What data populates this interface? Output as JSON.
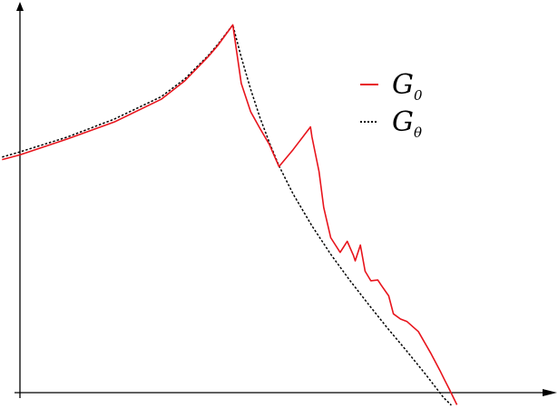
{
  "chart_data": {
    "type": "line",
    "title": "",
    "xlabel": "",
    "ylabel": "",
    "xlim": [
      0,
      100
    ],
    "ylim": [
      0,
      100
    ],
    "grid": false,
    "legend_position": "top-right",
    "series": [
      {
        "name": "G0",
        "label_main": "G",
        "label_sub": "0",
        "color": "#e8141c",
        "style": "solid",
        "x": [
          -3.8,
          0,
          10,
          20,
          30,
          35,
          40,
          42,
          45.2,
          47,
          49,
          51,
          53,
          55,
          58,
          61.7,
          62,
          63.5,
          64.5,
          66,
          68,
          69.5,
          70.8,
          71.2,
          72.3,
          73.3,
          74.5,
          76,
          76.7,
          78.3,
          79.3,
          80.8,
          82.2,
          84.6,
          87.2,
          89.2,
          90.2,
          91.2,
          92.8
        ],
        "y": [
          63.3,
          64.6,
          68.9,
          73.5,
          79.7,
          84.7,
          91.3,
          94.3,
          99.9,
          84.0,
          76.3,
          71.7,
          67.3,
          61.4,
          66.0,
          72.2,
          69.5,
          60.1,
          50.3,
          42.1,
          38.1,
          41.1,
          37.3,
          35.8,
          40.1,
          33.0,
          30.4,
          30.6,
          29.2,
          26.3,
          21.4,
          20.0,
          19.3,
          16.6,
          10.8,
          6.0,
          3.4,
          0.9,
          -3.3
        ]
      },
      {
        "name": "Gθ",
        "label_main": "G",
        "label_sub": "θ",
        "color": "#000000",
        "style": "dotted",
        "x": [
          -3.8,
          0,
          10,
          20,
          30,
          35,
          40,
          42,
          45.2,
          47,
          49,
          51,
          53,
          55,
          58,
          62,
          66,
          70,
          74,
          78,
          82,
          86,
          90,
          91.6
        ],
        "y": [
          64.0,
          65.4,
          69.4,
          74.3,
          80.4,
          85.2,
          91.6,
          94.6,
          99.9,
          91.1,
          82.4,
          74.6,
          67.8,
          61.6,
          54.0,
          45.3,
          37.6,
          30.6,
          24.0,
          17.6,
          11.5,
          5.2,
          -1.4,
          -3.4
        ]
      }
    ]
  }
}
